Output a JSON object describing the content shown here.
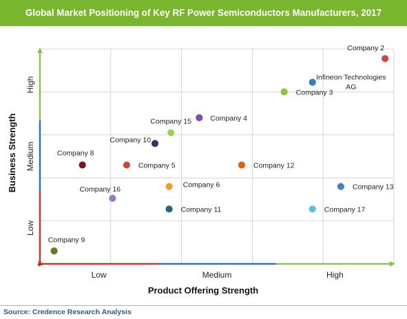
{
  "title": "Global Market Positioning of Key RF Power Semiconductors Manufacturers, 2017",
  "source": "Source: Credence Research Analysis",
  "chart_data": {
    "type": "scatter",
    "xlabel": "Product Offering Strength",
    "ylabel": "Business Strength",
    "x_categories": [
      "Low",
      "Medium",
      "High"
    ],
    "y_categories": [
      "Low",
      "Medium",
      "High"
    ],
    "xlim": [
      0,
      10
    ],
    "ylim": [
      0,
      10
    ],
    "grid": true,
    "axis_colors": {
      "low": "#c0392b",
      "medium": "#2e75b6",
      "high": "#8cc152"
    },
    "points": [
      {
        "label": "Company 2",
        "x": 9.75,
        "y": 9.55,
        "color": "#d9433c"
      },
      {
        "label": "Infineon Technologies AG",
        "x": 7.7,
        "y": 8.45,
        "color": "#3c78c8"
      },
      {
        "label": "Company 3",
        "x": 6.9,
        "y": 8.0,
        "color": "#93c13d"
      },
      {
        "label": "Company 4",
        "x": 4.5,
        "y": 6.8,
        "color": "#7a52a8"
      },
      {
        "label": "Company 15",
        "x": 3.7,
        "y": 6.1,
        "color": "#a3cc60"
      },
      {
        "label": "Company 10",
        "x": 3.25,
        "y": 5.6,
        "color": "#3a3160"
      },
      {
        "label": "Company 8",
        "x": 1.2,
        "y": 4.6,
        "color": "#7a1520"
      },
      {
        "label": "Company 5",
        "x": 2.45,
        "y": 4.6,
        "color": "#c44a3a"
      },
      {
        "label": "Company 12",
        "x": 5.7,
        "y": 4.6,
        "color": "#d9650f"
      },
      {
        "label": "Company 6",
        "x": 3.65,
        "y": 3.6,
        "color": "#f39c33"
      },
      {
        "label": "Company 13",
        "x": 8.5,
        "y": 3.6,
        "color": "#4a7cc0"
      },
      {
        "label": "Company 16",
        "x": 2.05,
        "y": 3.05,
        "color": "#9a7ac8"
      },
      {
        "label": "Company 11",
        "x": 3.65,
        "y": 2.55,
        "color": "#1e6878"
      },
      {
        "label": "Company 17",
        "x": 7.7,
        "y": 2.55,
        "color": "#5bc0e0"
      },
      {
        "label": "Company 9",
        "x": 0.4,
        "y": 0.6,
        "color": "#5f7a28"
      }
    ]
  }
}
